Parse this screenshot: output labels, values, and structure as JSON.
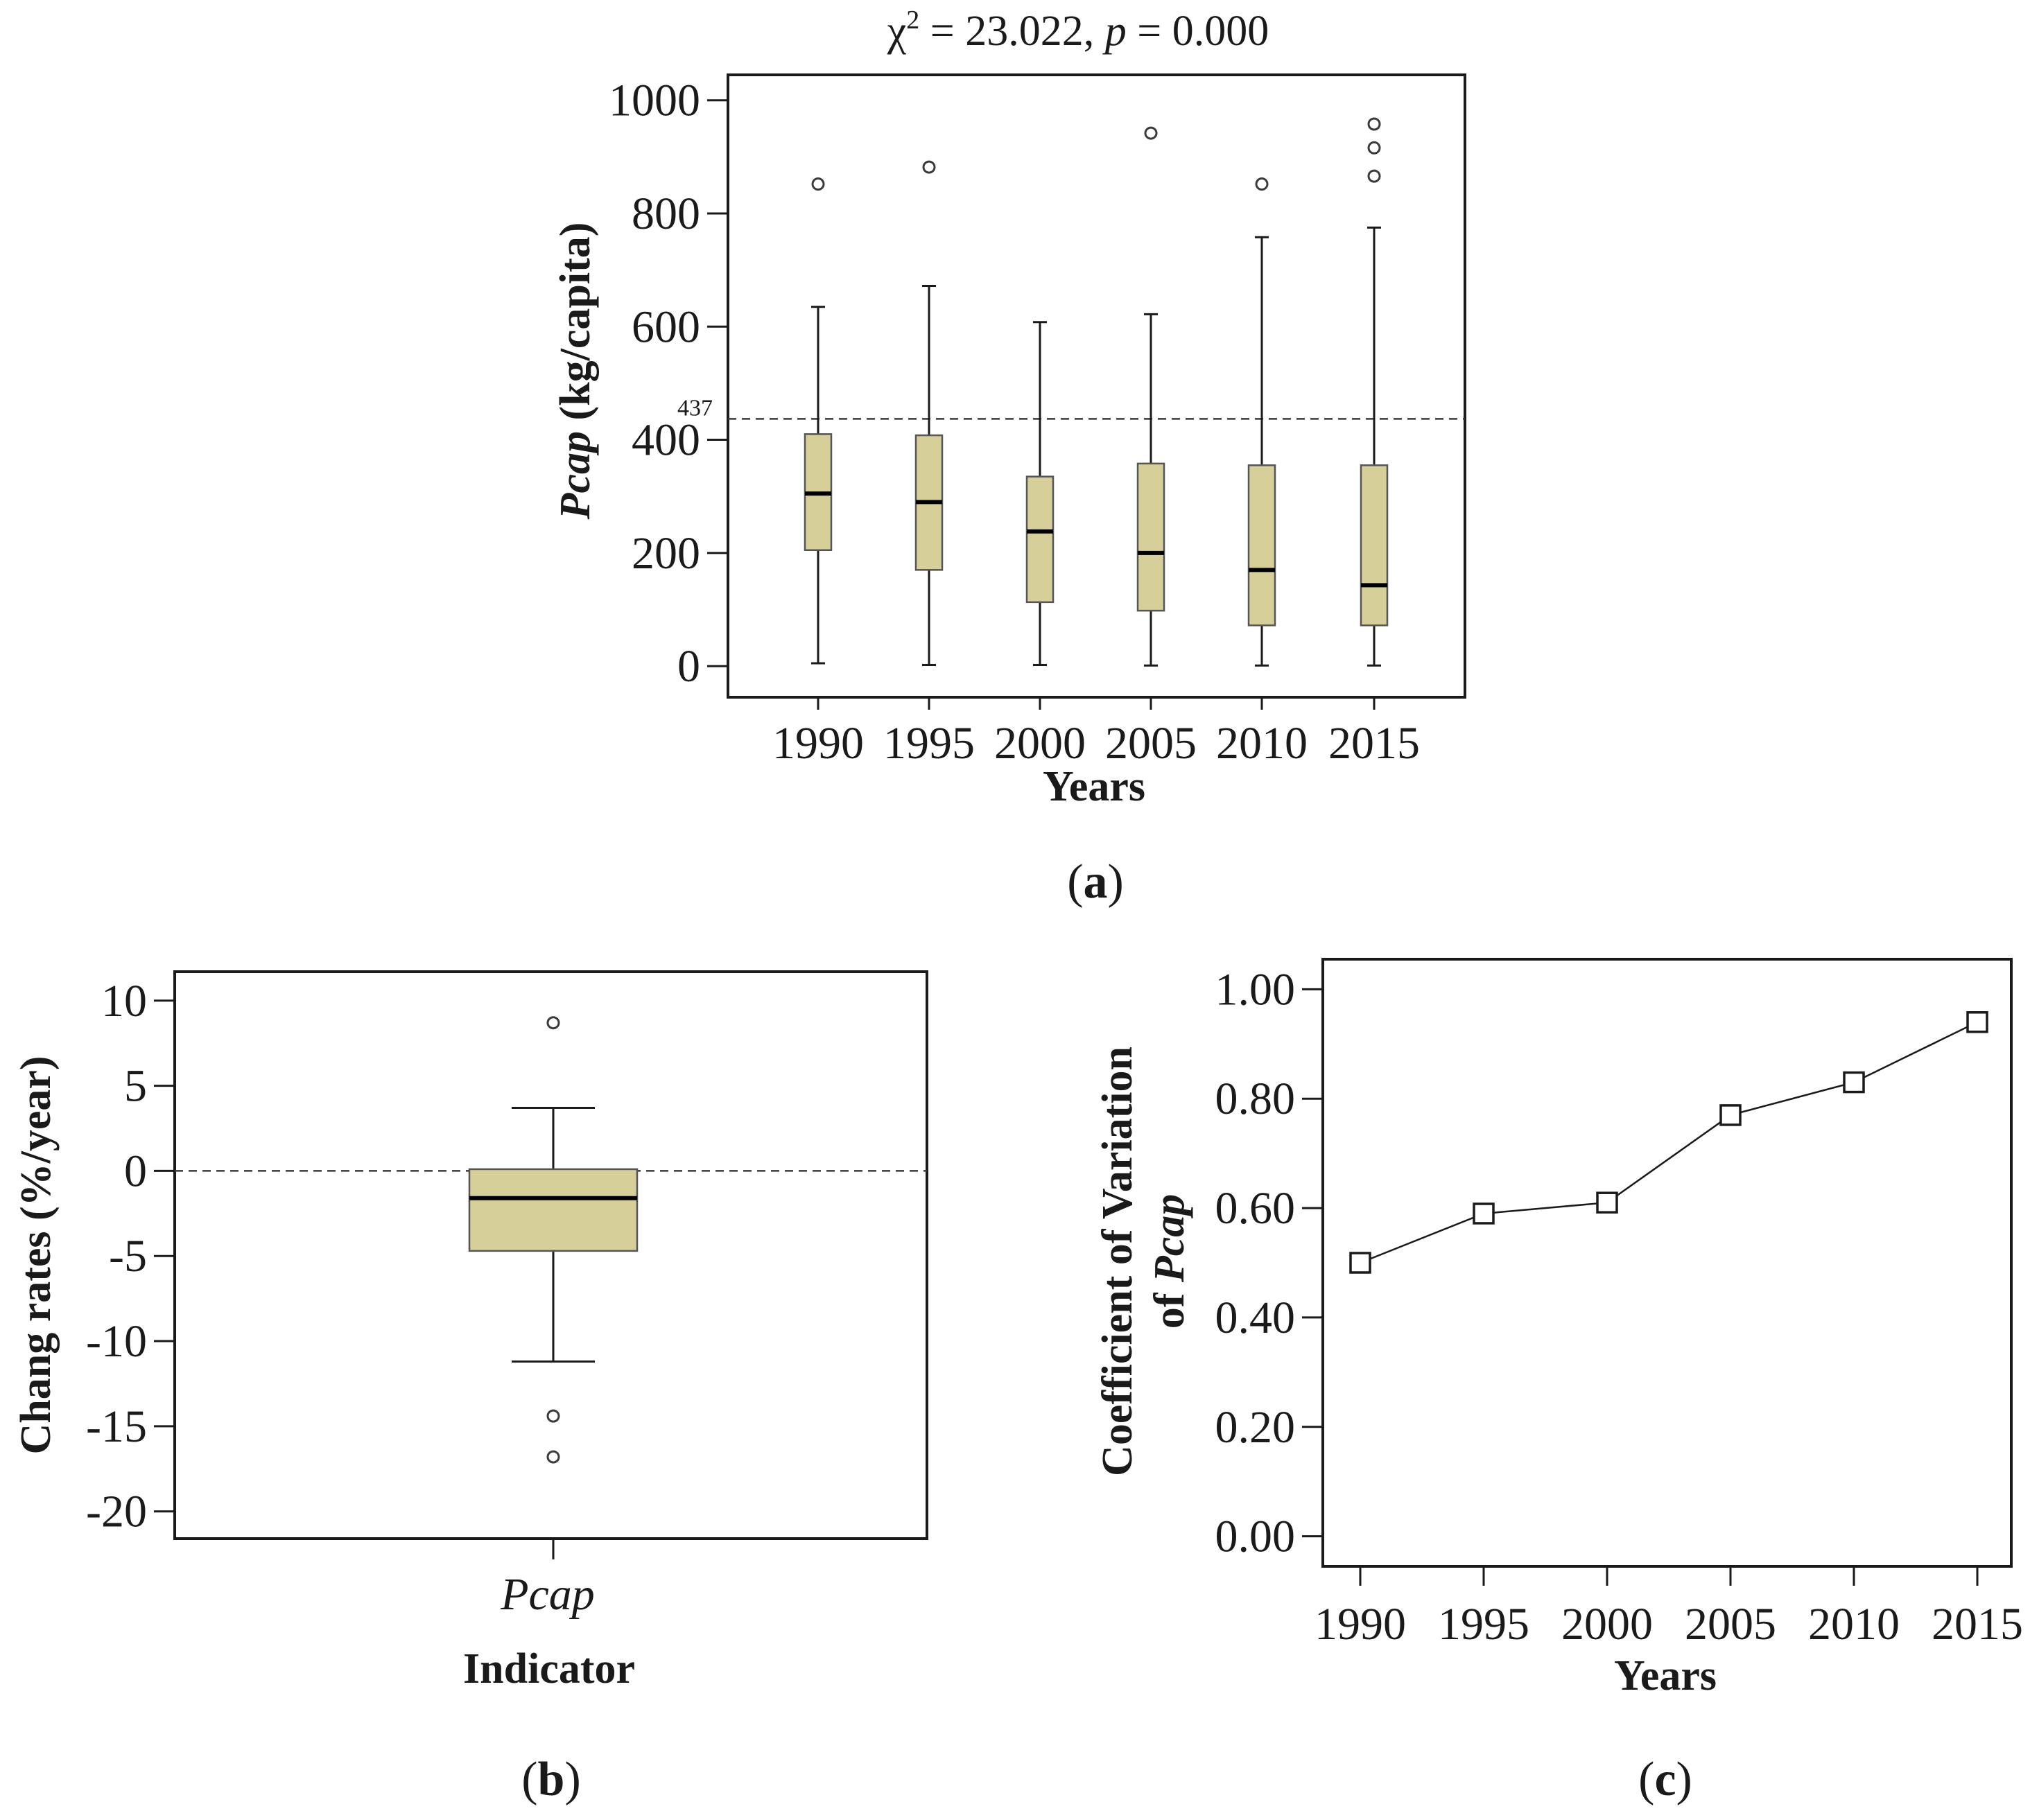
{
  "colors": {
    "box_fill": "#d6cf99",
    "line": "#1a1a1a",
    "outlier": "#3a3a3a",
    "ref_line": "#3a3a3a"
  },
  "chart_data": [
    {
      "panel": "(a)",
      "panel_parts": {
        "open": "(",
        "letter": "a",
        "close": ")"
      },
      "type": "box",
      "title_parts": {
        "chi": "χ",
        "sup": "2",
        "eq1": " = 23.022, ",
        "p": "p",
        "eq2": " = 0.000"
      },
      "xlabel": "Years",
      "ylabel_parts": {
        "italic": "Pcap",
        "normal": " (kg/capita)"
      },
      "ylim": [
        -55,
        1045
      ],
      "yticks": [
        0,
        200,
        400,
        600,
        800,
        1000
      ],
      "ytick_labels": [
        "0",
        "200",
        "400",
        "600",
        "800",
        "1000"
      ],
      "reference_line": {
        "value": 437,
        "label": "437"
      },
      "categories": [
        "1990",
        "1995",
        "2000",
        "2005",
        "2010",
        "2015"
      ],
      "boxes": [
        {
          "category": "1990",
          "whisker_low": 5,
          "q1": 205,
          "median": 305,
          "q3": 410,
          "whisker_high": 635,
          "outliers": [
            852
          ]
        },
        {
          "category": "1995",
          "whisker_low": 2,
          "q1": 170,
          "median": 290,
          "q3": 408,
          "whisker_high": 672,
          "outliers": [
            882
          ]
        },
        {
          "category": "2000",
          "whisker_low": 2,
          "q1": 113,
          "median": 238,
          "q3": 335,
          "whisker_high": 608,
          "outliers": []
        },
        {
          "category": "2005",
          "whisker_low": 1,
          "q1": 98,
          "median": 200,
          "q3": 358,
          "whisker_high": 622,
          "outliers": [
            942
          ]
        },
        {
          "category": "2010",
          "whisker_low": 1,
          "q1": 72,
          "median": 170,
          "q3": 355,
          "whisker_high": 758,
          "outliers": [
            852
          ]
        },
        {
          "category": "2015",
          "whisker_low": 1,
          "q1": 72,
          "median": 143,
          "q3": 355,
          "whisker_high": 775,
          "outliers": [
            866,
            916,
            958
          ]
        }
      ]
    },
    {
      "panel": "(b)",
      "panel_parts": {
        "open": "(",
        "letter": "b",
        "close": ")"
      },
      "type": "box",
      "xlabel": "Indicator",
      "ylabel": "Chang rates (%/year)",
      "ylim": [
        -21.6,
        11.7
      ],
      "yticks": [
        10,
        5,
        0,
        -5,
        -10,
        -15,
        -20
      ],
      "ytick_labels": [
        "10",
        "5",
        "0",
        "-5",
        "-10",
        "-15",
        "-20"
      ],
      "reference_line": {
        "value": 0
      },
      "categories": [
        "Pcap"
      ],
      "boxes": [
        {
          "category": "Pcap",
          "whisker_low": -11.2,
          "q1": -4.7,
          "median": -1.6,
          "q3": 0.1,
          "whisker_high": 3.7,
          "outliers": [
            8.7,
            -14.4,
            -16.8
          ]
        }
      ]
    },
    {
      "panel": "(c)",
      "panel_parts": {
        "open": "(",
        "letter": "c",
        "close": ")"
      },
      "type": "line",
      "xlabel": "Years",
      "ylabel_parts": {
        "line1": "Coefficient of Variation",
        "line2_normal": "of ",
        "line2_italic": "Pcap"
      },
      "ylim": [
        -0.055,
        1.055
      ],
      "yticks": [
        0.0,
        0.2,
        0.4,
        0.6,
        0.8,
        1.0
      ],
      "ytick_labels": [
        "0.00",
        "0.20",
        "0.40",
        "0.60",
        "0.80",
        "1.00"
      ],
      "categories": [
        "1990",
        "1995",
        "2000",
        "2005",
        "2010",
        "2015"
      ],
      "values": [
        0.5,
        0.59,
        0.61,
        0.77,
        0.83,
        0.94
      ],
      "marker": "open-square"
    }
  ]
}
